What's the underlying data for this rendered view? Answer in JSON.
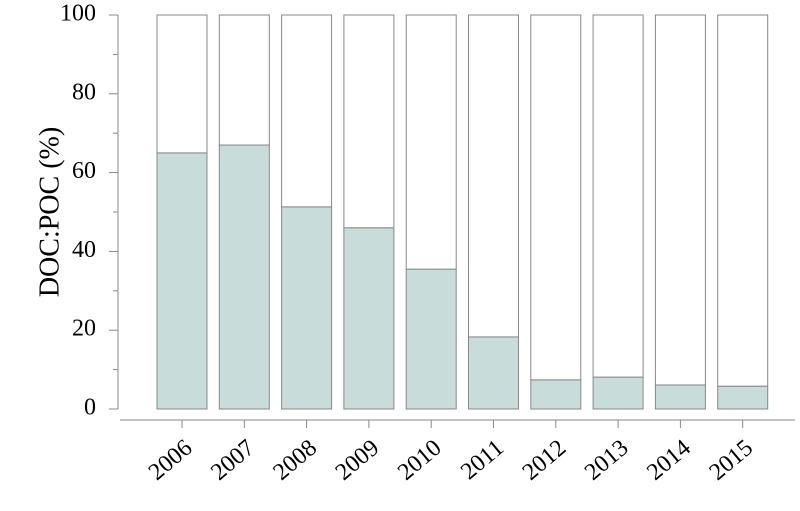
{
  "chart_data": {
    "type": "stacked-bar",
    "y_label": "DOC:POC (%)",
    "categories": [
      "2006",
      "2007",
      "2008",
      "2009",
      "2010",
      "2011",
      "2012",
      "2013",
      "2014",
      "2015"
    ],
    "series": [
      {
        "color": "#c8ddd9",
        "values": [
          65,
          67,
          51.3,
          46,
          35.5,
          18.3,
          7.4,
          8.1,
          6.1,
          5.8
        ]
      },
      {
        "color": "#ffffff",
        "values": [
          35,
          33,
          48.7,
          54,
          64.5,
          81.7,
          92.6,
          91.9,
          93.9,
          94.2
        ]
      }
    ],
    "ylim": [
      0,
      100
    ],
    "yticks": [
      0,
      20,
      40,
      60,
      80,
      100
    ],
    "yminorticks": [
      10,
      30,
      50,
      70,
      90
    ],
    "grid": false
  }
}
